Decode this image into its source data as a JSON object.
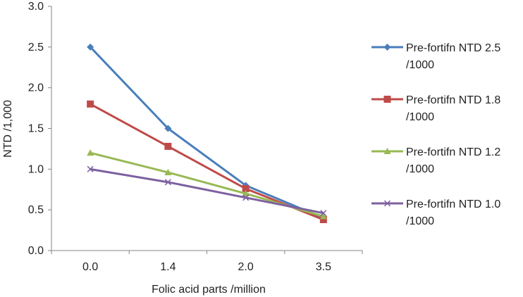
{
  "chart_data": {
    "type": "line",
    "title": "",
    "xlabel": "Folic acid parts /million",
    "ylabel": "NTD /1,000",
    "categories": [
      "0.0",
      "1.4",
      "2.0",
      "3.5"
    ],
    "ylim": [
      0,
      3
    ],
    "yticks": [
      "0.0",
      "0.5",
      "1.0",
      "1.5",
      "2.0",
      "2.5",
      "3.0"
    ],
    "grid": false,
    "legend_position": "right",
    "series": [
      {
        "name_line1": "Pre-fortifn NTD 2.5",
        "name_line2": "/1000",
        "values": [
          2.5,
          1.5,
          0.8,
          0.4
        ],
        "color": "#4a7ebb",
        "marker": "diamond"
      },
      {
        "name_line1": "Pre-fortifn NTD 1.8",
        "name_line2": "/1000",
        "values": [
          1.8,
          1.28,
          0.76,
          0.38
        ],
        "color": "#be4b48",
        "marker": "square"
      },
      {
        "name_line1": "Pre-fortifn NTD 1.2",
        "name_line2": "/1000",
        "values": [
          1.2,
          0.96,
          0.7,
          0.42
        ],
        "color": "#98b954",
        "marker": "triangle"
      },
      {
        "name_line1": "Pre-fortifn NTD 1.0",
        "name_line2": "/1000",
        "values": [
          1.0,
          0.84,
          0.65,
          0.46
        ],
        "color": "#7d60a0",
        "marker": "x"
      }
    ]
  }
}
